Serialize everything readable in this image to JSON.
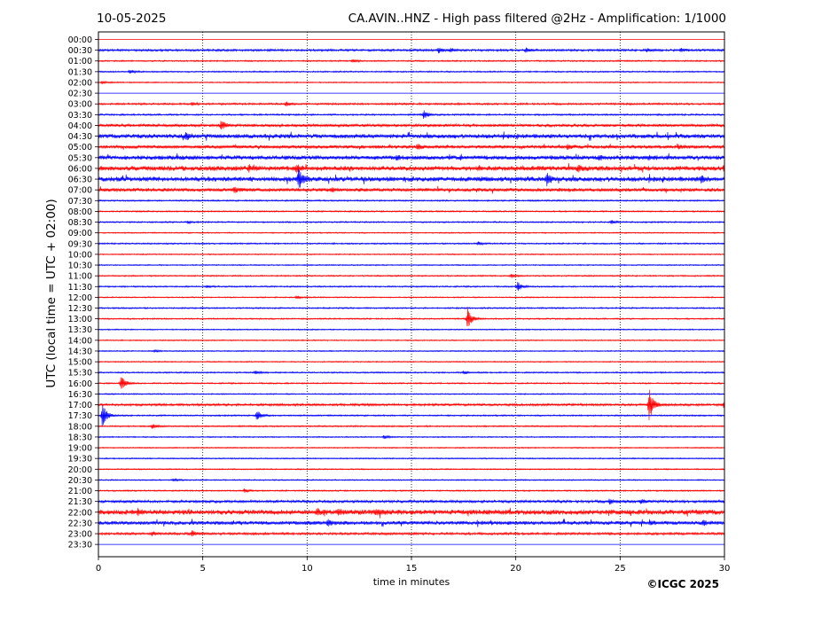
{
  "chart_data": {
    "type": "line",
    "title_left": "10-05-2025",
    "title": "CA.AVIN..HNZ - High pass filtered @2Hz - Amplification: 1/1000",
    "ylabel": "UTC (local time = UTC + 02:00)",
    "xlabel": "time in minutes",
    "credit": "©ICGC 2025",
    "xlim": [
      0,
      30
    ],
    "x_ticks": [
      "0",
      "5",
      "10",
      "15",
      "20",
      "25",
      "30"
    ],
    "row_labels": [
      "00:00",
      "00:30",
      "01:00",
      "01:30",
      "02:00",
      "02:30",
      "03:00",
      "03:30",
      "04:00",
      "04:30",
      "05:00",
      "05:30",
      "06:00",
      "06:30",
      "07:00",
      "07:30",
      "08:00",
      "08:30",
      "09:00",
      "09:30",
      "10:00",
      "10:30",
      "11:00",
      "11:30",
      "12:00",
      "12:30",
      "13:00",
      "13:30",
      "14:00",
      "14:30",
      "15:00",
      "15:30",
      "16:00",
      "16:30",
      "17:00",
      "17:30",
      "18:00",
      "18:30",
      "19:00",
      "19:30",
      "20:00",
      "20:30",
      "21:00",
      "21:30",
      "22:00",
      "22:30",
      "23:00",
      "23:30"
    ],
    "vertical_grid_minutes": [
      5,
      10,
      15,
      20,
      25
    ],
    "colors": {
      "even_rows": "#ff0000",
      "odd_rows": "#0000ff",
      "grid": "#000000"
    },
    "traces": [
      {
        "row": "00:30",
        "noise": 0.9,
        "events": [
          {
            "t": 16.3,
            "amp": 3
          },
          {
            "t": 16.9,
            "amp": 2
          },
          {
            "t": 20.5,
            "amp": 2
          },
          {
            "t": 26.3,
            "amp": 2
          },
          {
            "t": 27.9,
            "amp": 2
          }
        ]
      },
      {
        "row": "01:00",
        "noise": 0.6,
        "events": [
          {
            "t": 12.2,
            "amp": 2
          }
        ]
      },
      {
        "row": "01:30",
        "noise": 0.6,
        "events": [
          {
            "t": 1.5,
            "amp": 2
          }
        ]
      },
      {
        "row": "02:00",
        "noise": 0.5,
        "events": [
          {
            "t": 0.2,
            "amp": 2
          }
        ]
      },
      {
        "row": "03:00",
        "noise": 0.8,
        "events": [
          {
            "t": 9.0,
            "amp": 3
          },
          {
            "t": 4.5,
            "amp": 1.5
          }
        ]
      },
      {
        "row": "03:30",
        "noise": 0.7,
        "events": [
          {
            "t": 15.6,
            "amp": 5
          }
        ]
      },
      {
        "row": "04:00",
        "noise": 1.2,
        "events": [
          {
            "t": 5.9,
            "amp": 6
          }
        ]
      },
      {
        "row": "04:30",
        "noise": 1.8,
        "events": [
          {
            "t": 4.2,
            "amp": 4
          }
        ]
      },
      {
        "row": "05:00",
        "noise": 1.4,
        "events": [
          {
            "t": 15.3,
            "amp": 3
          },
          {
            "t": 22.5,
            "amp": 2
          },
          {
            "t": 27.8,
            "amp": 2
          }
        ]
      },
      {
        "row": "05:30",
        "noise": 1.8,
        "events": [
          {
            "t": 14.3,
            "amp": 2
          },
          {
            "t": 24.0,
            "amp": 2
          },
          {
            "t": 26.4,
            "amp": 2
          }
        ]
      },
      {
        "row": "06:00",
        "noise": 2.0,
        "events": [
          {
            "t": 7.2,
            "amp": 3
          },
          {
            "t": 9.5,
            "amp": 4
          },
          {
            "t": 23.0,
            "amp": 3
          },
          {
            "t": 30.0,
            "amp": 4
          }
        ]
      },
      {
        "row": "06:30",
        "noise": 2.0,
        "events": [
          {
            "t": 9.6,
            "amp": 12
          },
          {
            "t": 21.5,
            "amp": 6
          },
          {
            "t": 28.9,
            "amp": 3
          }
        ]
      },
      {
        "row": "07:00",
        "noise": 1.5,
        "events": [
          {
            "t": 6.5,
            "amp": 3
          },
          {
            "t": 11.2,
            "amp": 2
          }
        ]
      },
      {
        "row": "07:30",
        "noise": 0.6,
        "events": []
      },
      {
        "row": "08:00",
        "noise": 0.6,
        "events": []
      },
      {
        "row": "08:30",
        "noise": 0.6,
        "events": [
          {
            "t": 24.6,
            "amp": 2
          },
          {
            "t": 4.3,
            "amp": 1.5
          }
        ]
      },
      {
        "row": "09:00",
        "noise": 0.5,
        "events": []
      },
      {
        "row": "09:30",
        "noise": 0.6,
        "events": [
          {
            "t": 18.2,
            "amp": 2
          }
        ]
      },
      {
        "row": "10:00",
        "noise": 0.5,
        "events": []
      },
      {
        "row": "10:30",
        "noise": 0.5,
        "events": []
      },
      {
        "row": "11:00",
        "noise": 0.6,
        "events": [
          {
            "t": 19.8,
            "amp": 2
          }
        ]
      },
      {
        "row": "11:30",
        "noise": 0.6,
        "events": [
          {
            "t": 20.1,
            "amp": 5
          },
          {
            "t": 5.2,
            "amp": 1.5
          }
        ]
      },
      {
        "row": "12:00",
        "noise": 0.5,
        "events": [
          {
            "t": 9.5,
            "amp": 2
          }
        ]
      },
      {
        "row": "12:30",
        "noise": 0.6,
        "events": []
      },
      {
        "row": "13:00",
        "noise": 0.6,
        "events": [
          {
            "t": 17.7,
            "amp": 12
          }
        ]
      },
      {
        "row": "13:30",
        "noise": 0.5,
        "events": []
      },
      {
        "row": "14:00",
        "noise": 0.5,
        "events": []
      },
      {
        "row": "14:30",
        "noise": 0.5,
        "events": [
          {
            "t": 2.7,
            "amp": 1.5
          }
        ]
      },
      {
        "row": "15:00",
        "noise": 0.5,
        "events": []
      },
      {
        "row": "15:30",
        "noise": 0.6,
        "events": [
          {
            "t": 7.5,
            "amp": 2
          },
          {
            "t": 17.5,
            "amp": 2
          }
        ]
      },
      {
        "row": "16:00",
        "noise": 0.6,
        "events": [
          {
            "t": 1.1,
            "amp": 9
          }
        ]
      },
      {
        "row": "16:30",
        "noise": 0.5,
        "events": []
      },
      {
        "row": "17:00",
        "noise": 1.0,
        "events": [
          {
            "t": 26.4,
            "amp": 18
          },
          {
            "t": 30.0,
            "amp": 5
          }
        ]
      },
      {
        "row": "17:30",
        "noise": 0.6,
        "events": [
          {
            "t": 0.2,
            "amp": 14
          },
          {
            "t": 7.6,
            "amp": 6
          }
        ]
      },
      {
        "row": "18:00",
        "noise": 0.6,
        "events": [
          {
            "t": 2.6,
            "amp": 3
          }
        ]
      },
      {
        "row": "18:30",
        "noise": 0.5,
        "events": [
          {
            "t": 13.7,
            "amp": 2
          }
        ]
      },
      {
        "row": "19:00",
        "noise": 0.5,
        "events": []
      },
      {
        "row": "19:30",
        "noise": 0.5,
        "events": []
      },
      {
        "row": "20:00",
        "noise": 0.5,
        "events": []
      },
      {
        "row": "20:30",
        "noise": 0.5,
        "events": [
          {
            "t": 3.6,
            "amp": 2
          }
        ]
      },
      {
        "row": "21:00",
        "noise": 0.6,
        "events": [
          {
            "t": 7.0,
            "amp": 2
          }
        ]
      },
      {
        "row": "21:30",
        "noise": 1.1,
        "events": [
          {
            "t": 24.5,
            "amp": 3
          },
          {
            "t": 26.0,
            "amp": 2
          }
        ]
      },
      {
        "row": "22:00",
        "noise": 2.1,
        "events": [
          {
            "t": 1.9,
            "amp": 3
          },
          {
            "t": 10.5,
            "amp": 3
          },
          {
            "t": 11.5,
            "amp": 3
          },
          {
            "t": 13.3,
            "amp": 2.5
          }
        ]
      },
      {
        "row": "22:30",
        "noise": 1.6,
        "events": [
          {
            "t": 11.0,
            "amp": 3
          },
          {
            "t": 26.5,
            "amp": 2
          },
          {
            "t": 29.0,
            "amp": 2
          }
        ]
      },
      {
        "row": "23:00",
        "noise": 1.0,
        "events": [
          {
            "t": 2.6,
            "amp": 2
          },
          {
            "t": 4.5,
            "amp": 3
          }
        ]
      }
    ]
  }
}
